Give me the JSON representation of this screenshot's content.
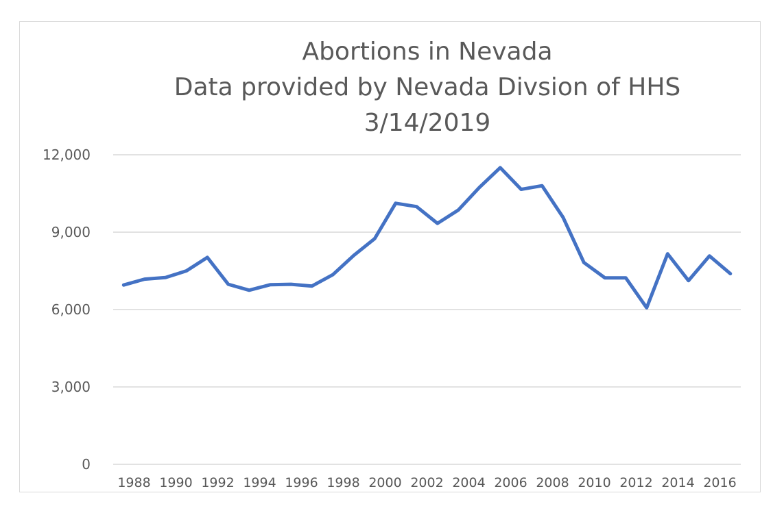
{
  "chart_data": {
    "type": "line",
    "title_lines": [
      "Abortions in Nevada",
      "Data provided by Nevada Divsion of HHS",
      "3/14/2019"
    ],
    "xlabel": "",
    "ylabel": "",
    "ylim": [
      0,
      12000
    ],
    "yticks": [
      0,
      3000,
      6000,
      9000,
      12000
    ],
    "ytick_labels": [
      "0",
      "3,000",
      "6,000",
      "9,000",
      "12,000"
    ],
    "x": [
      1988,
      1989,
      1990,
      1991,
      1992,
      1993,
      1994,
      1995,
      1996,
      1997,
      1998,
      1999,
      2000,
      2001,
      2002,
      2003,
      2004,
      2005,
      2006,
      2007,
      2008,
      2009,
      2010,
      2011,
      2012,
      2013,
      2014,
      2015,
      2016,
      2017
    ],
    "xtick_labels": [
      "1988",
      "1990",
      "1992",
      "1994",
      "1996",
      "1998",
      "2000",
      "2002",
      "2004",
      "2006",
      "2008",
      "2010",
      "2012",
      "2014",
      "2016"
    ],
    "xtick_values": [
      1988,
      1990,
      1992,
      1994,
      1996,
      1998,
      2000,
      2002,
      2004,
      2006,
      2008,
      2010,
      2012,
      2014,
      2016
    ],
    "series": [
      {
        "color": "#4472c4",
        "values": [
          6950,
          7180,
          7240,
          7500,
          8020,
          6980,
          6750,
          6960,
          6980,
          6910,
          7350,
          8100,
          8750,
          10120,
          9990,
          9340,
          9860,
          10730,
          11500,
          10660,
          10800,
          9580,
          7820,
          7230,
          7230,
          6070,
          8160,
          7120,
          8080,
          7390
        ]
      }
    ],
    "grid": true,
    "legend": "none"
  }
}
